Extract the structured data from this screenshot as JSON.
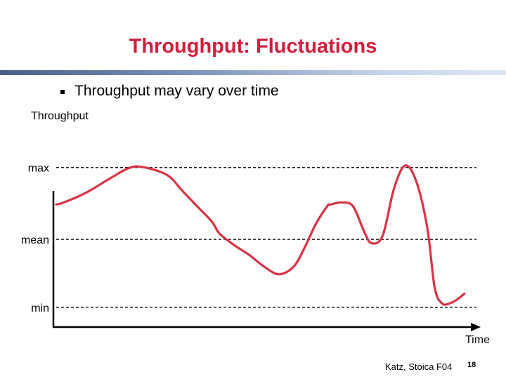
{
  "slide": {
    "title": "Throughput: Fluctuations",
    "bullet": "Throughput may vary over time",
    "footer": "Katz, Stoica F04",
    "page_number": "18"
  },
  "chart_data": {
    "type": "line",
    "ylabel": "Throughput",
    "xlabel": "Time",
    "reference_lines": [
      {
        "label": "max",
        "level": 0.67
      },
      {
        "label": "mean",
        "level": 0.3
      },
      {
        "label": "min",
        "level": -0.05
      }
    ],
    "series": [
      {
        "color": "#d93246",
        "x": [
          0,
          0.02,
          0.08,
          0.15,
          0.2,
          0.24,
          0.3,
          0.34,
          0.38,
          0.42,
          0.44,
          0.48,
          0.52,
          0.56,
          0.6,
          0.64,
          0.67,
          0.7,
          0.73,
          0.74,
          0.77,
          0.8,
          0.83,
          0.85,
          0.88,
          0.91,
          0.94,
          0.97,
          1.0,
          1.02,
          1.04,
          1.06,
          1.08,
          1.1
        ],
        "y": [
          0.48,
          0.49,
          0.54,
          0.62,
          0.67,
          0.67,
          0.63,
          0.55,
          0.47,
          0.39,
          0.33,
          0.27,
          0.22,
          0.16,
          0.12,
          0.16,
          0.26,
          0.38,
          0.47,
          0.48,
          0.49,
          0.47,
          0.34,
          0.28,
          0.32,
          0.56,
          0.68,
          0.6,
          0.36,
          0.05,
          -0.03,
          -0.03,
          -0.01,
          0.02
        ]
      }
    ]
  }
}
